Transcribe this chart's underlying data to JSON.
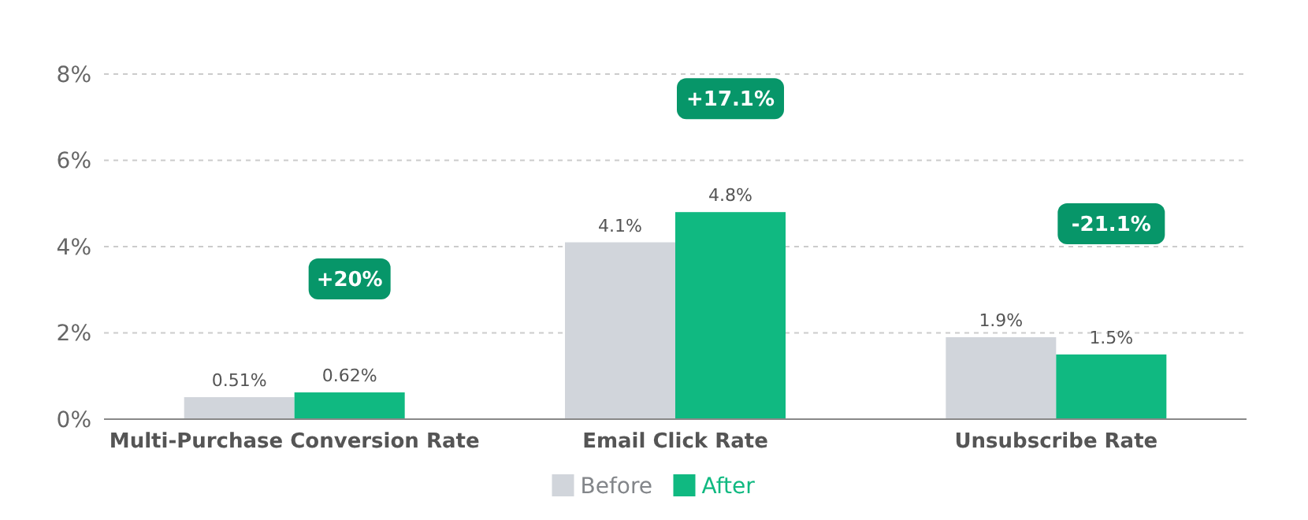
{
  "chart_data": {
    "type": "bar",
    "categories": [
      "Multi-Purchase Conversion Rate",
      "Email Click Rate",
      "Unsubscribe Rate"
    ],
    "series": [
      {
        "name": "Before",
        "color": "#d1d5db",
        "values": [
          0.51,
          4.1,
          1.9
        ],
        "value_labels": [
          "0.51%",
          "4.1%",
          "1.9%"
        ]
      },
      {
        "name": "After",
        "color": "#10b981",
        "values": [
          0.62,
          4.8,
          1.5
        ],
        "value_labels": [
          "0.62%",
          "4.8%",
          "1.5%"
        ]
      }
    ],
    "ylim": [
      0,
      8
    ],
    "yticks": [
      {
        "value": 0,
        "label": "0%"
      },
      {
        "value": 2,
        "label": "2%"
      },
      {
        "value": 4,
        "label": "4%"
      },
      {
        "value": 6,
        "label": "6%"
      },
      {
        "value": 8,
        "label": "8%"
      }
    ],
    "grid": "y",
    "legend": "bottom",
    "annotations": [
      "+20%",
      "+17.1%",
      "-21.1%"
    ]
  }
}
